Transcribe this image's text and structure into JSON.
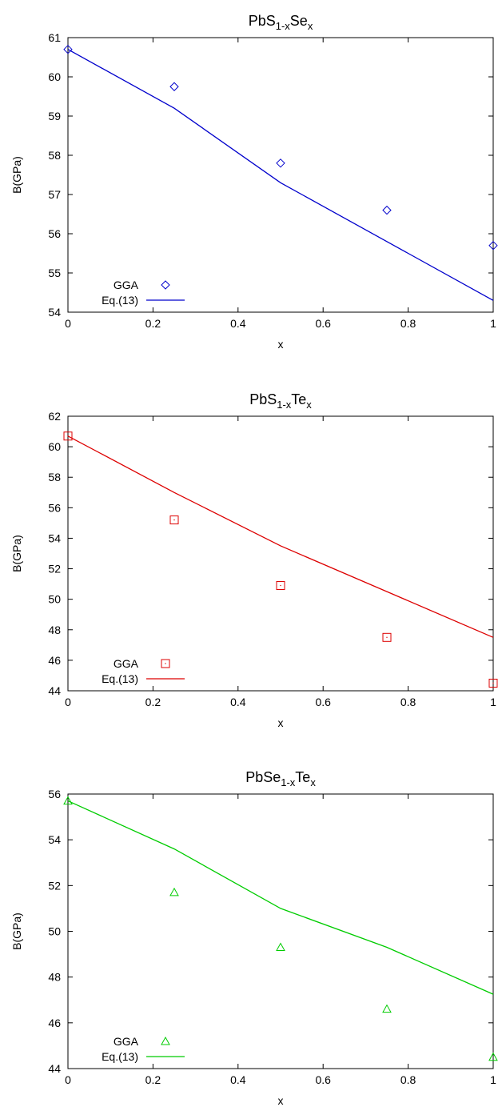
{
  "charts": [
    {
      "title": {
        "main": "PbS",
        "sub1": "1-x",
        "mid": "Se",
        "sub2": "x"
      },
      "chart_data": {
        "type": "scatter",
        "title": "PbS1-xSex",
        "xlabel": "x",
        "ylabel": "B(GPa)",
        "xlim": [
          0,
          1
        ],
        "ylim": [
          54,
          61
        ],
        "xticks": [
          "0",
          "0.2",
          "0.4",
          "0.6",
          "0.8",
          "1"
        ],
        "yticks": [
          "54",
          "55",
          "56",
          "57",
          "58",
          "59",
          "60",
          "61"
        ],
        "legend_position": "bottom-left",
        "color": "#0000cc",
        "marker": "diamond",
        "series": [
          {
            "name": "GGA",
            "kind": "points",
            "x": [
              0,
              0.25,
              0.5,
              0.75,
              1
            ],
            "y": [
              60.7,
              59.75,
              57.8,
              56.6,
              55.7
            ]
          },
          {
            "name": "Eq.(13)",
            "kind": "line",
            "x": [
              0,
              0.25,
              0.5,
              0.75,
              1
            ],
            "y": [
              60.7,
              59.2,
              57.3,
              55.8,
              54.3
            ]
          }
        ]
      }
    },
    {
      "title": {
        "main": "PbS",
        "sub1": "1-x",
        "mid": "Te",
        "sub2": "x"
      },
      "chart_data": {
        "type": "scatter",
        "title": "PbS1-xTex",
        "xlabel": "x",
        "ylabel": "B(GPa)",
        "xlim": [
          0,
          1
        ],
        "ylim": [
          44,
          62
        ],
        "xticks": [
          "0",
          "0.2",
          "0.4",
          "0.6",
          "0.8",
          "1"
        ],
        "yticks": [
          "44",
          "46",
          "48",
          "50",
          "52",
          "54",
          "56",
          "58",
          "60",
          "62"
        ],
        "legend_position": "bottom-left",
        "color": "#dd0000",
        "marker": "square",
        "series": [
          {
            "name": "GGA",
            "kind": "points",
            "x": [
              0,
              0.25,
              0.5,
              0.75,
              1
            ],
            "y": [
              60.7,
              55.2,
              50.9,
              47.5,
              44.5
            ]
          },
          {
            "name": "Eq.(13)",
            "kind": "line",
            "x": [
              0,
              0.25,
              0.5,
              0.75,
              1
            ],
            "y": [
              60.7,
              57,
              53.5,
              50.5,
              47.5
            ]
          }
        ]
      }
    },
    {
      "title": {
        "main": "PbSe",
        "sub1": "1-x",
        "mid": "Te",
        "sub2": "x"
      },
      "chart_data": {
        "type": "scatter",
        "title": "PbSe1-xTex",
        "xlabel": "x",
        "ylabel": "B(GPa)",
        "xlim": [
          0,
          1
        ],
        "ylim": [
          44,
          56
        ],
        "xticks": [
          "0",
          "0.2",
          "0.4",
          "0.6",
          "0.8",
          "1"
        ],
        "yticks": [
          "44",
          "46",
          "48",
          "50",
          "52",
          "54",
          "56"
        ],
        "legend_position": "bottom-left",
        "color": "#00cc00",
        "marker": "triangle",
        "series": [
          {
            "name": "GGA",
            "kind": "points",
            "x": [
              0,
              0.25,
              0.5,
              0.75,
              1
            ],
            "y": [
              55.7,
              51.7,
              49.3,
              46.6,
              44.5
            ]
          },
          {
            "name": "Eq.(13)",
            "kind": "line",
            "x": [
              0,
              0.25,
              0.5,
              0.75,
              1
            ],
            "y": [
              55.7,
              53.6,
              51,
              49.3,
              47.25
            ]
          }
        ]
      }
    }
  ]
}
